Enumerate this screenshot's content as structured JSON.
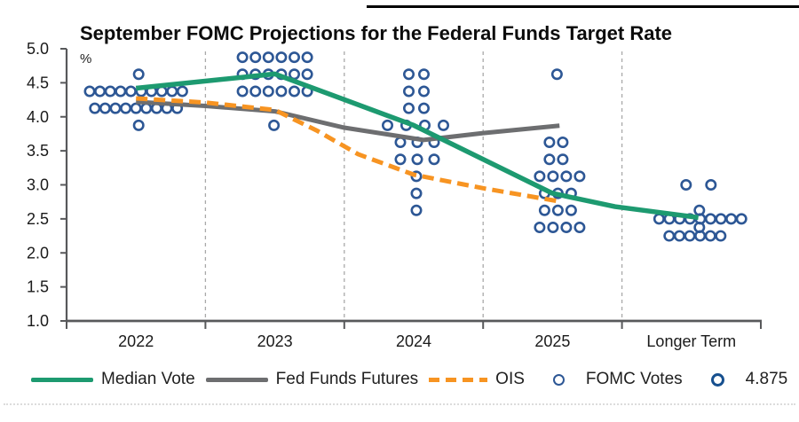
{
  "page": {
    "title": "September FOMC Projections for the Federal Funds Target Rate",
    "unit_label": "%"
  },
  "colors": {
    "median": "#1d9a70",
    "futures": "#6d6e70",
    "ois": "#f79422",
    "dot": "#2d5795",
    "dot_highlight": "#17508f",
    "axis": "#58595b",
    "grid": "#a9a9a9",
    "text": "#1a1a1a",
    "top_rule": "#000000"
  },
  "chart_data": {
    "type": "scatter",
    "title": "September FOMC Projections for the Federal Funds Target Rate",
    "xlabel": "",
    "ylabel": "%",
    "ylim": [
      1.0,
      5.0
    ],
    "yticks": [
      5.0,
      4.5,
      4.0,
      3.5,
      3.0,
      2.5,
      2.0,
      1.5,
      1.0
    ],
    "categories": [
      "2022",
      "2023",
      "2024",
      "2025",
      "Longer Term"
    ],
    "grid": "vertical-dashed-between-categories",
    "legend_position": "bottom",
    "dot_columns": [
      {
        "category": "2022",
        "rows": [
          {
            "value": 4.625,
            "count": 1,
            "offset": 3
          },
          {
            "value": 4.375,
            "count": 10,
            "spacing": 11.6
          },
          {
            "value": 4.125,
            "count": 9,
            "spacing": 11.6
          },
          {
            "value": 3.875,
            "count": 1,
            "offset": 3
          }
        ]
      },
      {
        "category": "2023",
        "rows": [
          {
            "value": 4.875,
            "count": 6,
            "spacing": 14.6
          },
          {
            "value": 4.625,
            "count": 6,
            "spacing": 14.6
          },
          {
            "value": 4.375,
            "count": 6,
            "spacing": 14.6
          },
          {
            "value": 3.875,
            "count": 1,
            "offset": -1
          }
        ]
      },
      {
        "category": "2024",
        "rows": [
          {
            "value": 4.625,
            "count": 2,
            "spacing": 17,
            "offset": 3
          },
          {
            "value": 4.375,
            "count": 2,
            "spacing": 17,
            "offset": 3
          },
          {
            "value": 4.125,
            "count": 2,
            "spacing": 17,
            "offset": 3
          },
          {
            "value": 3.875,
            "count": 4,
            "spacing": 21,
            "offset": 2
          },
          {
            "value": 3.625,
            "count": 3,
            "spacing": 19,
            "offset": 4
          },
          {
            "value": 3.375,
            "count": 3,
            "spacing": 19,
            "offset": 4
          },
          {
            "value": 3.125,
            "count": 1,
            "offset": 3
          },
          {
            "value": 2.875,
            "count": 1,
            "offset": 3
          },
          {
            "value": 2.625,
            "count": 1,
            "offset": 3
          }
        ]
      },
      {
        "category": "2025",
        "rows": [
          {
            "value": 4.625,
            "count": 1,
            "offset": 5
          },
          {
            "value": 3.625,
            "count": 2,
            "spacing": 15,
            "offset": 4
          },
          {
            "value": 3.375,
            "count": 2,
            "spacing": 15,
            "offset": 4
          },
          {
            "value": 3.125,
            "count": 4,
            "spacing": 15,
            "offset": 8
          },
          {
            "value": 2.875,
            "count": 3,
            "spacing": 15,
            "offset": 6
          },
          {
            "value": 2.625,
            "count": 3,
            "spacing": 15,
            "offset": 6
          },
          {
            "value": 2.375,
            "count": 4,
            "spacing": 15,
            "offset": 8
          }
        ]
      },
      {
        "category": "Longer Term",
        "rows": [
          {
            "value": 3.0,
            "count": 2,
            "spacing": 28,
            "offset": 8
          },
          {
            "value": 2.625,
            "count": 1,
            "offset": 9
          },
          {
            "value": 2.5,
            "count": 9,
            "spacing": 11.6,
            "offset": 10
          },
          {
            "value": 2.375,
            "count": 1,
            "offset": 9
          },
          {
            "value": 2.25,
            "count": 6,
            "spacing": 11.6,
            "offset": 4
          }
        ]
      }
    ],
    "series": [
      {
        "name": "Fed Funds Futures",
        "style": "solid",
        "color_key": "futures",
        "width": 5,
        "points": [
          [
            0,
            4.22
          ],
          [
            0.5,
            4.16
          ],
          [
            1,
            4.08
          ],
          [
            1.5,
            3.84
          ],
          [
            2.07,
            3.66
          ],
          [
            2.5,
            3.76
          ],
          [
            3.05,
            3.87
          ]
        ]
      },
      {
        "name": "OIS",
        "style": "dashed",
        "color_key": "ois",
        "width": 5,
        "points": [
          [
            0,
            4.27
          ],
          [
            0.5,
            4.21
          ],
          [
            1,
            4.1
          ],
          [
            1.3,
            3.8
          ],
          [
            1.6,
            3.45
          ],
          [
            2.0,
            3.15
          ],
          [
            2.5,
            2.95
          ],
          [
            3.04,
            2.76
          ]
        ]
      },
      {
        "name": "Median Vote",
        "style": "solid",
        "color_key": "median",
        "width": 5.5,
        "points": [
          [
            0,
            4.42
          ],
          [
            1,
            4.63
          ],
          [
            2,
            3.875
          ],
          [
            3,
            2.875
          ],
          [
            3.45,
            2.68
          ],
          [
            4.05,
            2.52
          ]
        ]
      }
    ],
    "median_votes": {
      "2022": 4.375,
      "2023": 4.625,
      "2024": 3.875,
      "2025": 2.875,
      "Longer Term": 2.5
    }
  },
  "legend": {
    "items": [
      {
        "label": "Median Vote",
        "swatch": "line-green"
      },
      {
        "label": "Fed Funds Futures",
        "swatch": "line-gray"
      },
      {
        "label": "OIS",
        "swatch": "dash-orange"
      },
      {
        "label": "FOMC Votes",
        "swatch": "circle"
      },
      {
        "label": "4.875",
        "swatch": "circle-bold"
      }
    ]
  }
}
